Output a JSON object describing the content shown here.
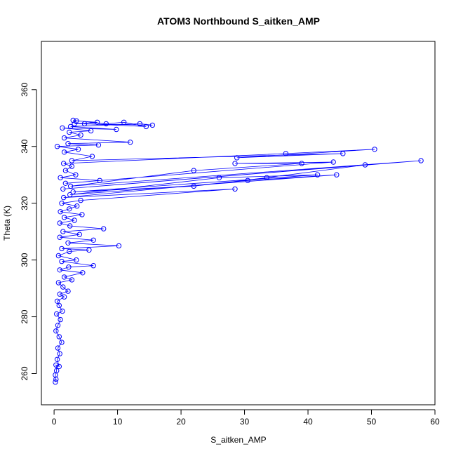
{
  "chart_data": {
    "type": "line",
    "title": "ATOM3 Northbound S_aitken_AMP",
    "xlabel": "S_aitken_AMP",
    "ylabel": "Theta (K)",
    "xlim": [
      -2,
      60
    ],
    "ylim": [
      249,
      377
    ],
    "x_ticks": [
      0,
      10,
      20,
      30,
      40,
      50,
      60
    ],
    "y_ticks": [
      260,
      280,
      300,
      320,
      340,
      360
    ],
    "grid": false,
    "legend": "none",
    "color": "#0000ff",
    "marker": "open-circle",
    "series": [
      {
        "points": [
          [
            0.2,
            257
          ],
          [
            0.3,
            258
          ],
          [
            0.2,
            259.5
          ],
          [
            0.4,
            261
          ],
          [
            0.3,
            263
          ],
          [
            0.8,
            262.5
          ],
          [
            0.5,
            265
          ],
          [
            0.9,
            267
          ],
          [
            0.6,
            269
          ],
          [
            1.2,
            271
          ],
          [
            0.8,
            273
          ],
          [
            0.3,
            275
          ],
          [
            0.6,
            277
          ],
          [
            1.0,
            279
          ],
          [
            0.4,
            281
          ],
          [
            1.3,
            282
          ],
          [
            0.8,
            284
          ],
          [
            0.5,
            285.5
          ],
          [
            1.6,
            287
          ],
          [
            0.9,
            288
          ],
          [
            2.2,
            289
          ],
          [
            1.4,
            290.5
          ],
          [
            0.7,
            292
          ],
          [
            2.8,
            293
          ],
          [
            1.6,
            294
          ],
          [
            4.5,
            295.5
          ],
          [
            0.9,
            296.5
          ],
          [
            2.3,
            297.5
          ],
          [
            6.2,
            298
          ],
          [
            1.2,
            299.5
          ],
          [
            3.5,
            300
          ],
          [
            0.7,
            301.5
          ],
          [
            2.4,
            303
          ],
          [
            5.5,
            303.5
          ],
          [
            1.2,
            304
          ],
          [
            10.2,
            305
          ],
          [
            2.2,
            306
          ],
          [
            6.2,
            307
          ],
          [
            0.9,
            308
          ],
          [
            4.0,
            309
          ],
          [
            1.4,
            310
          ],
          [
            7.8,
            311
          ],
          [
            2.5,
            312
          ],
          [
            0.9,
            313
          ],
          [
            3.2,
            314
          ],
          [
            1.6,
            315
          ],
          [
            4.4,
            316
          ],
          [
            1.0,
            317
          ],
          [
            2.4,
            318
          ],
          [
            3.6,
            319
          ],
          [
            1.2,
            320
          ],
          [
            4.2,
            321
          ],
          [
            28.5,
            325
          ],
          [
            1.5,
            322
          ],
          [
            30.5,
            328
          ],
          [
            44.5,
            330
          ],
          [
            2.5,
            323
          ],
          [
            26,
            329
          ],
          [
            41.5,
            330
          ],
          [
            3.0,
            324
          ],
          [
            22,
            326
          ],
          [
            33.5,
            329
          ],
          [
            49,
            333.5
          ],
          [
            1.4,
            325
          ],
          [
            57.8,
            335
          ],
          [
            2.6,
            326
          ],
          [
            22,
            331.5
          ],
          [
            39,
            334
          ],
          [
            28.5,
            334
          ],
          [
            44,
            334.5
          ],
          [
            1.8,
            327
          ],
          [
            7.2,
            328
          ],
          [
            1.0,
            329
          ],
          [
            3.4,
            330
          ],
          [
            1.8,
            331.5
          ],
          [
            2.8,
            333
          ],
          [
            1.5,
            334
          ],
          [
            36.5,
            337.5
          ],
          [
            50.5,
            339
          ],
          [
            28.8,
            336
          ],
          [
            45.5,
            337.5
          ],
          [
            2.8,
            335
          ],
          [
            6.0,
            336.5
          ],
          [
            1.6,
            338
          ],
          [
            3.8,
            339
          ],
          [
            0.5,
            340
          ],
          [
            7.0,
            340.5
          ],
          [
            2.2,
            341
          ],
          [
            12,
            341.5
          ],
          [
            1.6,
            343
          ],
          [
            4.2,
            344
          ],
          [
            2.4,
            345
          ],
          [
            5.8,
            345.5
          ],
          [
            1.3,
            346.5
          ],
          [
            9.8,
            346
          ],
          [
            2.6,
            347
          ],
          [
            13.5,
            348
          ],
          [
            15.5,
            347.5
          ],
          [
            3.2,
            348
          ],
          [
            6.8,
            348.5
          ],
          [
            3.5,
            349
          ],
          [
            3.0,
            349.2
          ],
          [
            8.2,
            348
          ],
          [
            11,
            348.5
          ],
          [
            14.5,
            347
          ],
          [
            4.8,
            348
          ]
        ]
      }
    ]
  }
}
